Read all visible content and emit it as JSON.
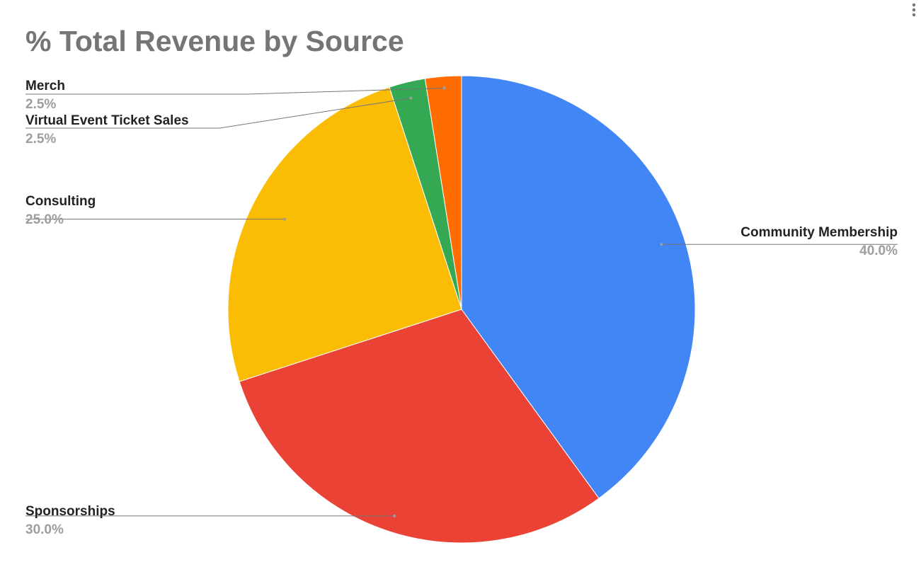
{
  "chart_data": {
    "type": "pie",
    "title": "% Total Revenue by Source",
    "slices": [
      {
        "label": "Community Membership",
        "value": 40.0,
        "percent_label": "40.0%",
        "color": "#4285f4"
      },
      {
        "label": "Sponsorships",
        "value": 30.0,
        "percent_label": "30.0%",
        "color": "#ea4335"
      },
      {
        "label": "Consulting",
        "value": 25.0,
        "percent_label": "25.0%",
        "color": "#fbbc04"
      },
      {
        "label": "Virtual Event Ticket Sales",
        "value": 2.5,
        "percent_label": "2.5%",
        "color": "#34a853"
      },
      {
        "label": "Merch",
        "value": 2.5,
        "percent_label": "2.5%",
        "color": "#ff6d01"
      }
    ],
    "legend": "none",
    "labels": "outside-with-leader-lines"
  },
  "toolbar": {
    "menu_icon": "more-vert-icon"
  }
}
